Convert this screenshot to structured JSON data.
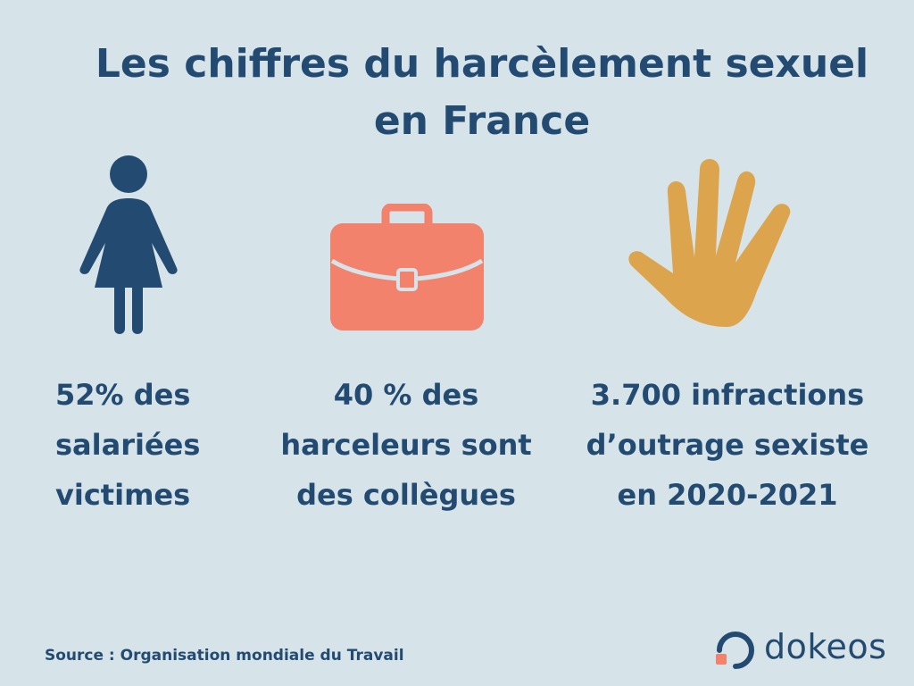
{
  "title": {
    "line1": "Les chiffres du harcèlement sexuel",
    "line2": "en France"
  },
  "stats": [
    {
      "icon": "woman-icon",
      "lines": [
        "52% des",
        "salariées",
        "victimes"
      ]
    },
    {
      "icon": "briefcase-icon",
      "lines": [
        "40 % des",
        "harceleurs sont",
        "des collègues"
      ]
    },
    {
      "icon": "hand-icon",
      "lines": [
        "3.700 infractions",
        "d’outrage sexiste",
        "en 2020-2021"
      ]
    }
  ],
  "source": "Source : Organisation mondiale du Travail",
  "logo": {
    "text": "dokeos"
  },
  "colors": {
    "background": "#d6e3e9",
    "navy": "#234b72",
    "coral": "#f2826c",
    "gold": "#dca54d"
  }
}
